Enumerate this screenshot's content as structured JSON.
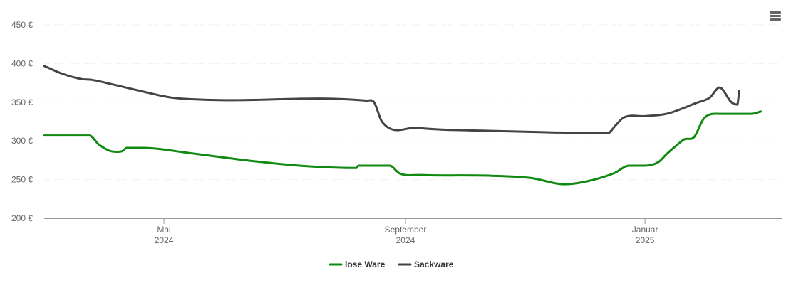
{
  "chart_data": {
    "type": "line",
    "title": "",
    "xlabel": "",
    "ylabel": "",
    "ylim": [
      200,
      450
    ],
    "y_ticks": [
      200,
      250,
      300,
      350,
      400,
      450
    ],
    "y_tick_suffix": " €",
    "xlim": [
      "2024-03-01",
      "2025-03-12"
    ],
    "x_ticks": [
      {
        "date": "2024-05-01",
        "label": "Mai",
        "year": "2024"
      },
      {
        "date": "2024-09-01",
        "label": "September",
        "year": "2024"
      },
      {
        "date": "2025-01-01",
        "label": "Januar",
        "year": "2025"
      }
    ],
    "grid": "horizontal",
    "legend": "bottom-center",
    "series": [
      {
        "name": "lose Ware",
        "color": "#108a10",
        "points": [
          [
            "2024-03-01",
            307
          ],
          [
            "2024-03-24",
            307
          ],
          [
            "2024-03-29",
            295
          ],
          [
            "2024-04-06",
            286
          ],
          [
            "2024-04-10",
            287
          ],
          [
            "2024-04-12",
            291
          ],
          [
            "2024-04-20",
            291
          ],
          [
            "2024-05-15",
            284
          ],
          [
            "2024-06-15",
            274
          ],
          [
            "2024-07-15",
            267
          ],
          [
            "2024-08-07",
            265
          ],
          [
            "2024-08-08",
            268
          ],
          [
            "2024-08-24",
            268
          ],
          [
            "2024-08-29",
            258
          ],
          [
            "2024-09-09",
            256
          ],
          [
            "2024-10-15",
            255
          ],
          [
            "2024-11-04",
            252
          ],
          [
            "2024-11-21",
            244
          ],
          [
            "2024-12-01",
            247
          ],
          [
            "2024-12-16",
            258
          ],
          [
            "2024-12-24",
            268
          ],
          [
            "2025-01-01",
            268
          ],
          [
            "2025-01-08",
            273
          ],
          [
            "2025-01-12",
            283
          ],
          [
            "2025-01-17",
            294
          ],
          [
            "2025-01-21",
            302
          ],
          [
            "2025-01-26",
            305
          ],
          [
            "2025-01-31",
            329
          ],
          [
            "2025-02-08",
            335
          ],
          [
            "2025-02-24",
            335
          ],
          [
            "2025-03-01",
            338
          ]
        ]
      },
      {
        "name": "Sackware",
        "color": "#434348",
        "points": [
          [
            "2024-03-01",
            397
          ],
          [
            "2024-03-10",
            387
          ],
          [
            "2024-03-20",
            380
          ],
          [
            "2024-03-25",
            379
          ],
          [
            "2024-04-05",
            373
          ],
          [
            "2024-04-20",
            364
          ],
          [
            "2024-05-05",
            356
          ],
          [
            "2024-05-25",
            353
          ],
          [
            "2024-08-12",
            352
          ],
          [
            "2024-08-16",
            350
          ],
          [
            "2024-08-20",
            325
          ],
          [
            "2024-09-07",
            317
          ],
          [
            "2024-10-15",
            313
          ],
          [
            "2024-11-15",
            311
          ],
          [
            "2024-12-13",
            310
          ],
          [
            "2024-12-17",
            320
          ],
          [
            "2024-12-21",
            330
          ],
          [
            "2025-01-01",
            332
          ],
          [
            "2025-01-12",
            335
          ],
          [
            "2025-01-27",
            349
          ],
          [
            "2025-02-03",
            356
          ],
          [
            "2025-02-08",
            369
          ],
          [
            "2025-02-14",
            350
          ],
          [
            "2025-02-17",
            347
          ],
          [
            "2025-02-18",
            365
          ]
        ]
      }
    ]
  }
}
